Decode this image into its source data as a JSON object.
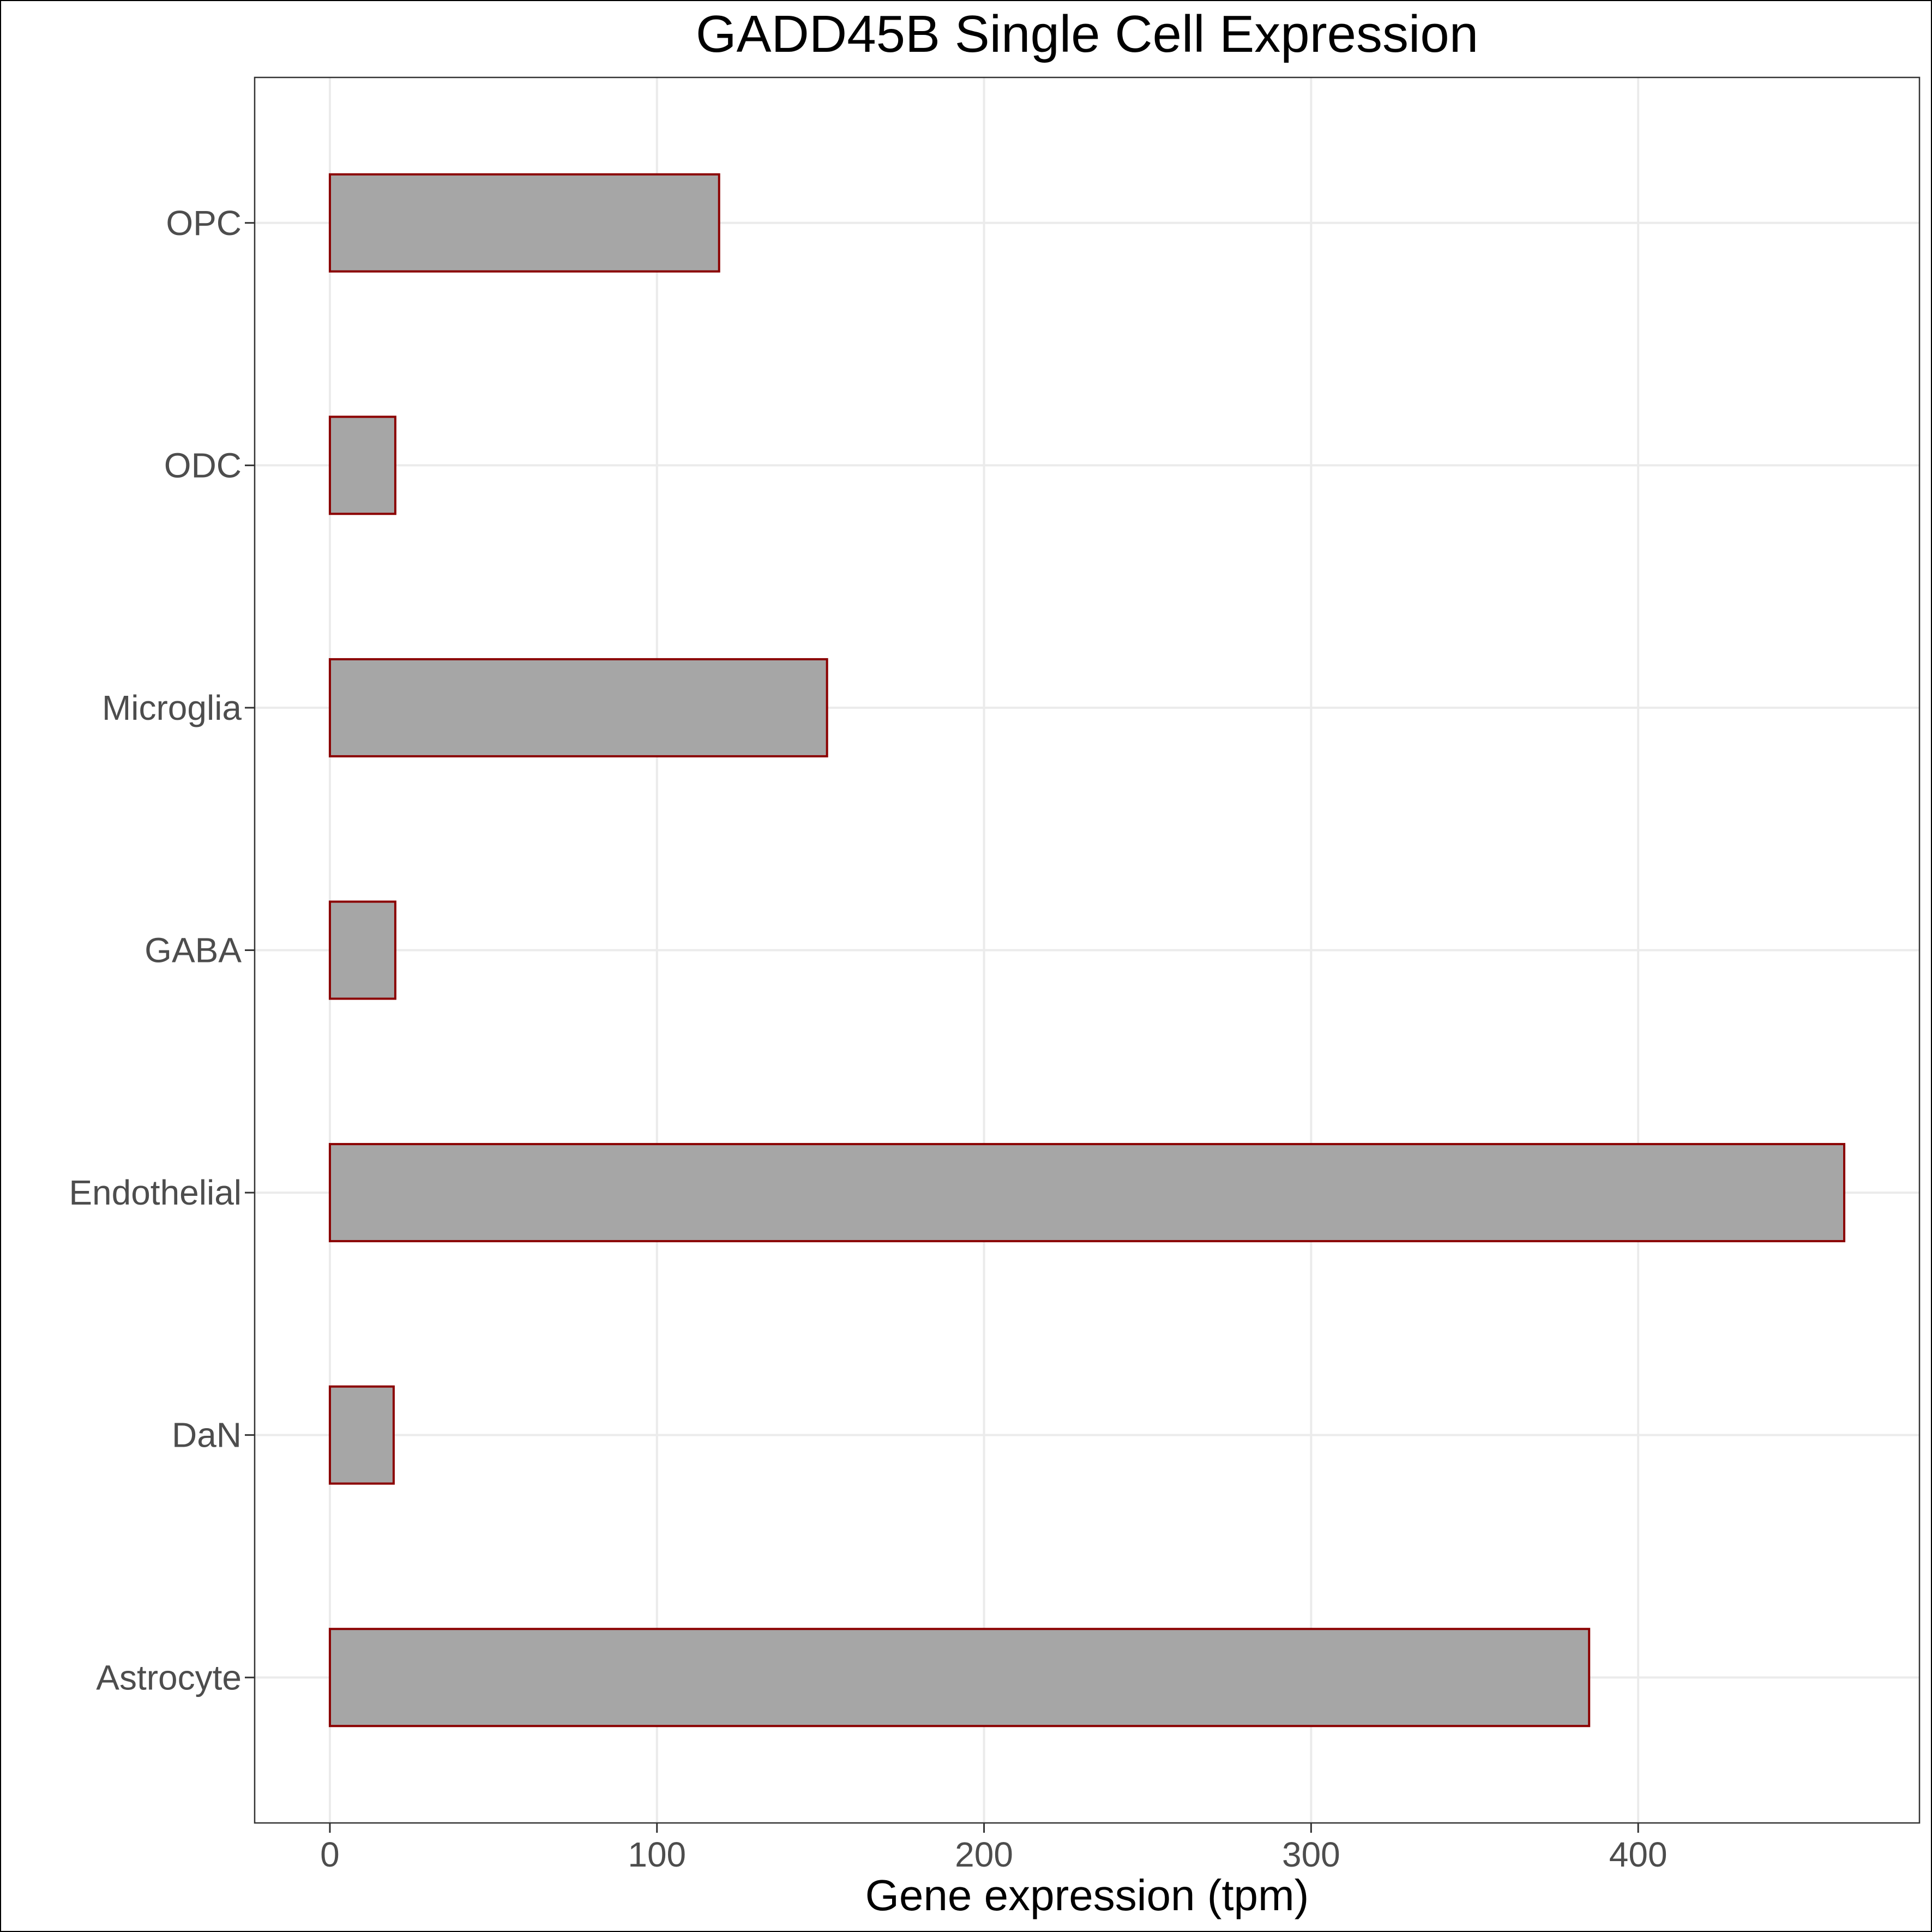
{
  "chart_data": {
    "type": "bar",
    "orientation": "horizontal",
    "title": "GADD45B Single Cell Expression",
    "xlabel": "Gene expression (tpm)",
    "ylabel": "",
    "categories": [
      "Astrocyte",
      "DaN",
      "Endothelial",
      "GABA",
      "Microglia",
      "ODC",
      "OPC"
    ],
    "values": [
      385,
      19.5,
      463,
      20,
      152,
      20,
      119
    ],
    "xlim": [
      -23,
      486
    ],
    "xticks": [
      0,
      100,
      200,
      300,
      400
    ],
    "grid": true,
    "legend": "none",
    "colors": {
      "bar_fill": "#a6a6a6",
      "bar_stroke": "#8b0000",
      "grid": "#ebebeb",
      "panel_border": "#333333",
      "tick_label": "#4d4d4d",
      "title": "#000000"
    }
  }
}
